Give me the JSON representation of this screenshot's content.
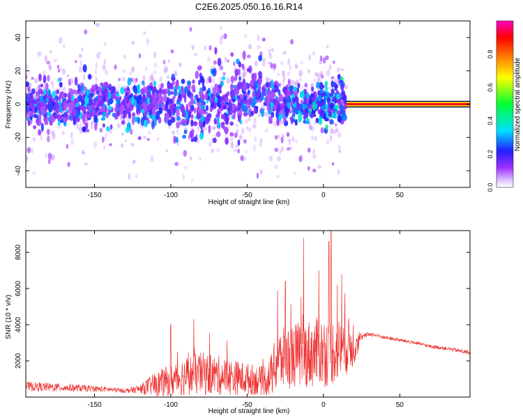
{
  "figure_title": "C2E6.2025.050.16.16.R14",
  "chart_data": [
    {
      "type": "heatmap",
      "xlabel": "Height of straight line (km)",
      "ylabel": "Frequency (Hz)",
      "xlim": [
        -195,
        96
      ],
      "ylim": [
        -50,
        50
      ],
      "xticks": [
        -150,
        -100,
        -50,
        0,
        50
      ],
      "yticks": [
        -40,
        -20,
        0,
        20,
        40
      ],
      "xtick_labels": [
        "-150",
        "-100",
        "-50",
        "0",
        "50"
      ],
      "ytick_labels": [
        "-40",
        "-20",
        "0",
        "20",
        "40"
      ],
      "colorbar": {
        "label": "Normalized spectral amplitude",
        "range": [
          0,
          1
        ],
        "ticks": [
          0.0,
          0.2,
          0.4,
          0.6,
          0.8
        ],
        "tick_labels": [
          "0.0",
          "0.2",
          "0.4",
          "0.6",
          "0.8"
        ],
        "colormap": "rainbow (white-violet-blue-cyan-green-yellow-red-magenta)"
      },
      "features": [
        {
          "region_km": [
            -195,
            15
          ],
          "freq_center_hz": 0,
          "freq_spread_hz": 8,
          "amplitude": "0.1-0.35 broad scatter"
        },
        {
          "region_km": [
            16,
            96
          ],
          "freq_center_hz": 0,
          "amplitude": "0.8-0.95 narrow line"
        }
      ],
      "grid": false
    },
    {
      "type": "line",
      "xlabel": "Height of straight line (km)",
      "ylabel": "SNR (10 * v/v)",
      "xlim": [
        -195,
        96
      ],
      "ylim": [
        0,
        9200
      ],
      "xticks": [
        -150,
        -100,
        -50,
        0,
        50
      ],
      "yticks": [
        2000,
        4000,
        6000,
        8000
      ],
      "xtick_labels": [
        "-150",
        "-100",
        "-50",
        "0",
        "50"
      ],
      "ytick_labels": [
        "2000",
        "4000",
        "6000",
        "8000"
      ],
      "line_color": "#ee3333",
      "grid": false,
      "envelope": {
        "x": [
          -195,
          -180,
          -160,
          -140,
          -130,
          -120,
          -110,
          -100,
          -90,
          -80,
          -70,
          -60,
          -50,
          -40,
          -35,
          -30,
          -20,
          -10,
          0,
          10,
          20,
          25,
          30,
          40,
          50,
          60,
          70,
          80,
          96
        ],
        "y": [
          600,
          550,
          500,
          420,
          350,
          450,
          700,
          900,
          1200,
          1300,
          1200,
          1100,
          1000,
          900,
          1100,
          2000,
          2300,
          2400,
          2500,
          2600,
          3000,
          3300,
          3500,
          3300,
          3150,
          3000,
          2800,
          2700,
          2450
        ],
        "spread": [
          250,
          250,
          200,
          150,
          120,
          250,
          700,
          900,
          1100,
          1200,
          1100,
          1000,
          900,
          800,
          1100,
          1700,
          1800,
          1900,
          2000,
          1800,
          1400,
          150,
          120,
          100,
          100,
          100,
          100,
          100,
          120
        ]
      },
      "spikes": [
        {
          "x": -13,
          "y": 8800
        },
        {
          "x": 5,
          "y": 9200
        },
        {
          "x": 3.5,
          "y": 8600
        },
        {
          "x": -30,
          "y": 5900
        },
        {
          "x": -3,
          "y": 7000
        },
        {
          "x": 9,
          "y": 6200
        },
        {
          "x": 12,
          "y": 6800
        },
        {
          "x": -25,
          "y": 6400
        },
        {
          "x": -85,
          "y": 4300
        },
        {
          "x": -100,
          "y": 4000
        }
      ]
    }
  ]
}
